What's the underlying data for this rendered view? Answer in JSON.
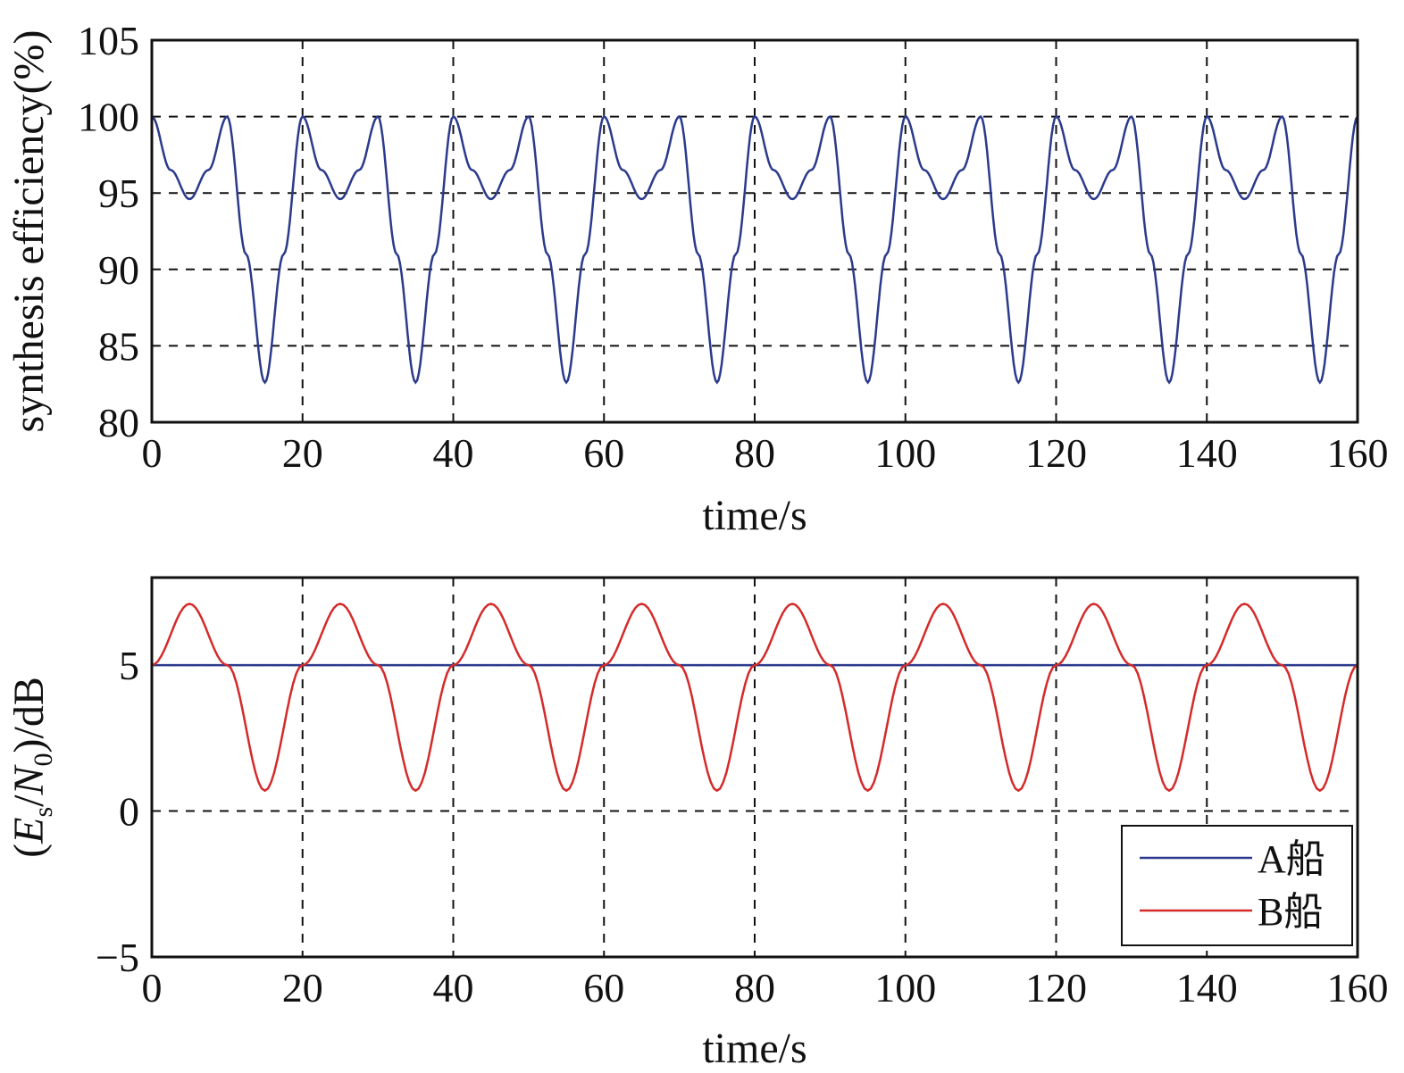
{
  "chart_data": [
    {
      "type": "line",
      "title": "",
      "xlabel": "time/s",
      "ylabel": "synthesis efficiency(%)",
      "xlim": [
        0,
        160
      ],
      "ylim": [
        80,
        105
      ],
      "xticks": [
        "0",
        "20",
        "40",
        "60",
        "80",
        "100",
        "120",
        "140",
        "160"
      ],
      "yticks": [
        "80",
        "85",
        "90",
        "95",
        "100",
        "105"
      ],
      "grid": true,
      "legend": "none",
      "series": [
        {
          "color": "#2b3a8c",
          "x": [
            0,
            2.5,
            5,
            7.5,
            10,
            12.5,
            15,
            17.5,
            20,
            22.5,
            25,
            27.5,
            30,
            32.5,
            35,
            37.5,
            40,
            42.5,
            45,
            47.5,
            50,
            52.5,
            55,
            57.5,
            60,
            62.5,
            65,
            67.5,
            70,
            72.5,
            75,
            77.5,
            80,
            82.5,
            85,
            87.5,
            90,
            92.5,
            95,
            97.5,
            100,
            102.5,
            105,
            107.5,
            110,
            112.5,
            115,
            117.5,
            120,
            122.5,
            125,
            127.5,
            130,
            132.5,
            135,
            137.5,
            140,
            142.5,
            145,
            147.5,
            150,
            152.5,
            155,
            157.5,
            160
          ],
          "values": [
            100,
            96.5,
            94.6,
            96.5,
            100,
            91,
            82.6,
            91,
            100,
            96.5,
            94.6,
            96.5,
            100,
            91,
            82.6,
            91,
            100,
            96.5,
            94.6,
            96.5,
            100,
            91,
            82.6,
            91,
            100,
            96.5,
            94.6,
            96.5,
            100,
            91,
            82.6,
            91,
            100,
            96.5,
            94.6,
            96.5,
            100,
            91,
            82.6,
            91,
            100,
            96.5,
            94.6,
            96.5,
            100,
            91,
            82.6,
            91,
            100,
            96.5,
            94.6,
            96.5,
            100,
            91,
            82.6,
            91,
            100,
            96.5,
            94.6,
            96.5,
            100,
            91,
            82.6,
            91,
            100
          ]
        }
      ]
    },
    {
      "type": "line",
      "title": "",
      "xlabel": "time/s",
      "ylabel": "(E_s/N_0)/dB",
      "ylabel_parts": {
        "open": "(",
        "E": "E",
        "sub_s": "s",
        "slash": "/",
        "N": "N",
        "sub_0": "0",
        "close": ")/dB"
      },
      "xlim": [
        0,
        160
      ],
      "ylim": [
        -5,
        8
      ],
      "xticks": [
        "0",
        "20",
        "40",
        "60",
        "80",
        "100",
        "120",
        "140",
        "160"
      ],
      "yticks": [
        -5,
        0,
        5
      ],
      "ytick_labels": [
        "−5",
        "0",
        "5"
      ],
      "grid": true,
      "legend": "bottom-right",
      "series": [
        {
          "name": "A船",
          "color": "#2b3a8c",
          "x": [
            0,
            160
          ],
          "values": [
            5,
            5
          ]
        },
        {
          "name": "B船",
          "color": "#d42a2a",
          "x": [
            0,
            5,
            10,
            15,
            20,
            25,
            30,
            35,
            40,
            45,
            50,
            55,
            60,
            65,
            70,
            75,
            80,
            85,
            90,
            95,
            100,
            105,
            110,
            115,
            120,
            125,
            130,
            135,
            140,
            145,
            150,
            155,
            160
          ],
          "values": [
            5,
            7.1,
            5,
            0.7,
            5,
            7.1,
            5,
            0.7,
            5,
            7.1,
            5,
            0.7,
            5,
            7.1,
            5,
            0.7,
            5,
            7.1,
            5,
            0.7,
            5,
            7.1,
            5,
            0.7,
            5,
            7.1,
            5,
            0.7,
            5,
            7.1,
            5,
            0.7,
            5
          ]
        }
      ]
    }
  ]
}
